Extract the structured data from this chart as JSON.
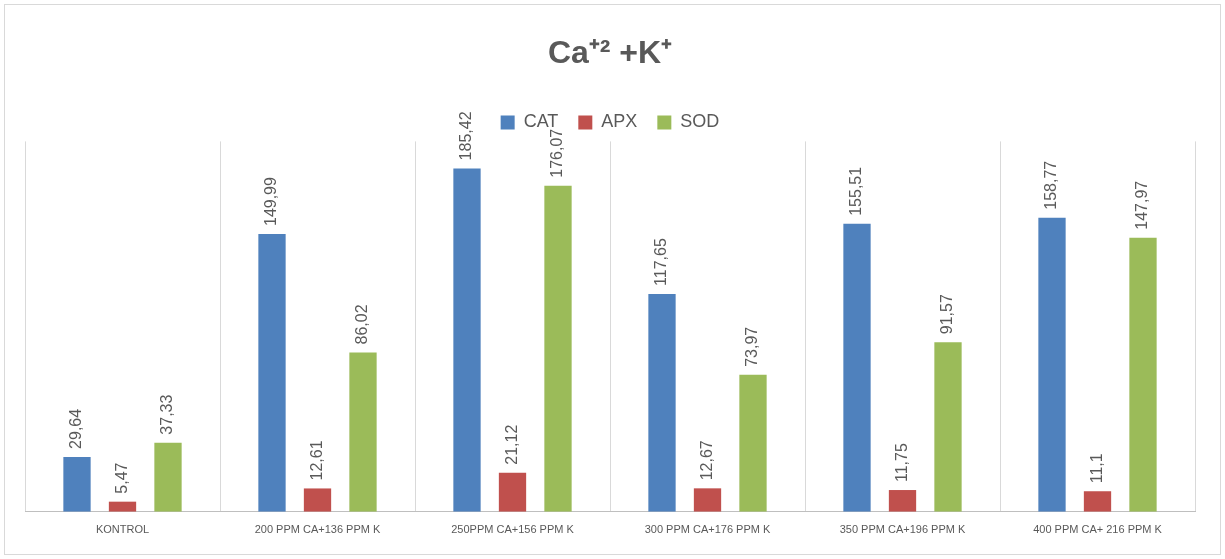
{
  "chart_data": {
    "type": "bar",
    "title": "Ca⁺² +K⁺",
    "categories": [
      "KONTROL",
      "200 PPM CA+136 PPM K",
      "250PPM CA+156 PPM K",
      "300 PPM CA+176 PPM K",
      "350 PPM CA+196 PPM K",
      "400 PPM CA+ 216 PPM K"
    ],
    "series": [
      {
        "name": "CAT",
        "color": "#4f81bd",
        "values": [
          29.64,
          149.99,
          185.42,
          117.65,
          155.51,
          158.77
        ],
        "value_labels": [
          "29,64",
          "149,99",
          "185,42",
          "117,65",
          "155,51",
          "158,77"
        ]
      },
      {
        "name": "APX",
        "color": "#c0504d",
        "values": [
          5.47,
          12.61,
          21.12,
          12.67,
          11.75,
          11.1
        ],
        "value_labels": [
          "5,47",
          "12,61",
          "21,12",
          "12,67",
          "11,75",
          "11,1"
        ]
      },
      {
        "name": "SOD",
        "color": "#9bbb59",
        "values": [
          37.33,
          86.02,
          176.07,
          73.97,
          91.57,
          147.97
        ],
        "value_labels": [
          "37,33",
          "86,02",
          "176,07",
          "73,97",
          "91,57",
          "147,97"
        ]
      }
    ],
    "grid": "x",
    "legend": "top"
  }
}
